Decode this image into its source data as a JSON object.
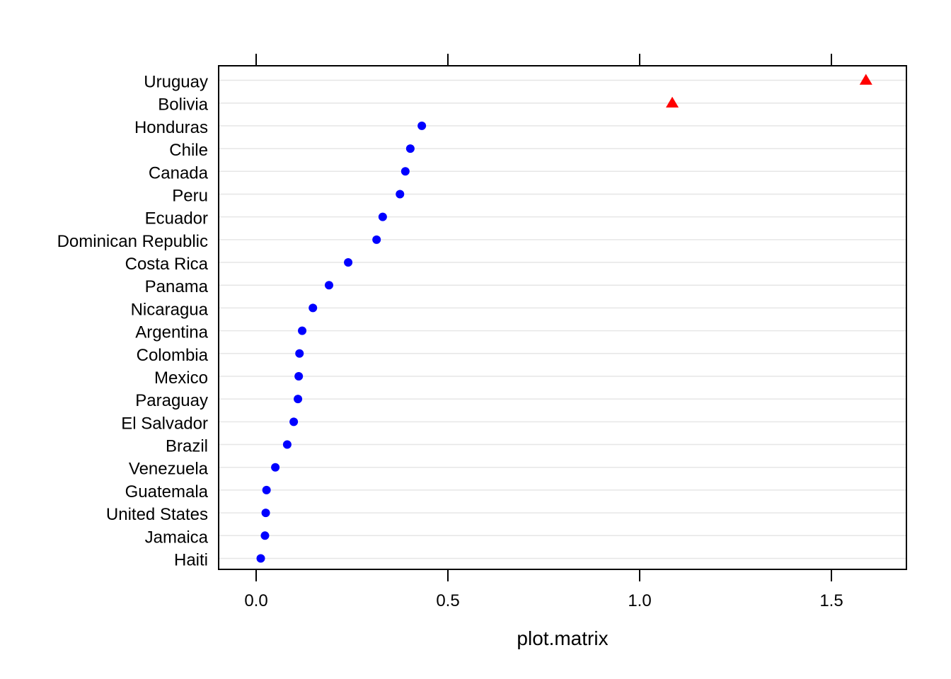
{
  "chart_data": {
    "type": "scatter",
    "title": "",
    "xlabel": "plot.matrix",
    "ylabel": "",
    "xlim": [
      -0.1,
      1.7
    ],
    "x_ticks": [
      {
        "value": 0.0,
        "label": "0.0"
      },
      {
        "value": 0.5,
        "label": "0.5"
      },
      {
        "value": 1.0,
        "label": "1.0"
      },
      {
        "value": 1.5,
        "label": "1.5"
      }
    ],
    "grid": "horizontal",
    "legend": "none",
    "categories": [
      "Uruguay",
      "Bolivia",
      "Honduras",
      "Chile",
      "Canada",
      "Peru",
      "Ecuador",
      "Dominican Republic",
      "Costa Rica",
      "Panama",
      "Nicaragua",
      "Argentina",
      "Colombia",
      "Mexico",
      "Paraguay",
      "El Salvador",
      "Brazil",
      "Venezuela",
      "Guatemala",
      "United States",
      "Jamaica",
      "Haiti"
    ],
    "values": [
      1.59,
      1.085,
      0.432,
      0.402,
      0.389,
      0.375,
      0.33,
      0.314,
      0.24,
      0.19,
      0.148,
      0.12,
      0.113,
      0.111,
      0.109,
      0.098,
      0.081,
      0.05,
      0.027,
      0.025,
      0.023,
      0.012
    ],
    "markers": [
      "triangle",
      "triangle",
      "circle",
      "circle",
      "circle",
      "circle",
      "circle",
      "circle",
      "circle",
      "circle",
      "circle",
      "circle",
      "circle",
      "circle",
      "circle",
      "circle",
      "circle",
      "circle",
      "circle",
      "circle",
      "circle",
      "circle"
    ],
    "marker_colors": {
      "circle": "#0000ff",
      "triangle": "#ff0000"
    },
    "grid_color": "#e6e6e6"
  }
}
